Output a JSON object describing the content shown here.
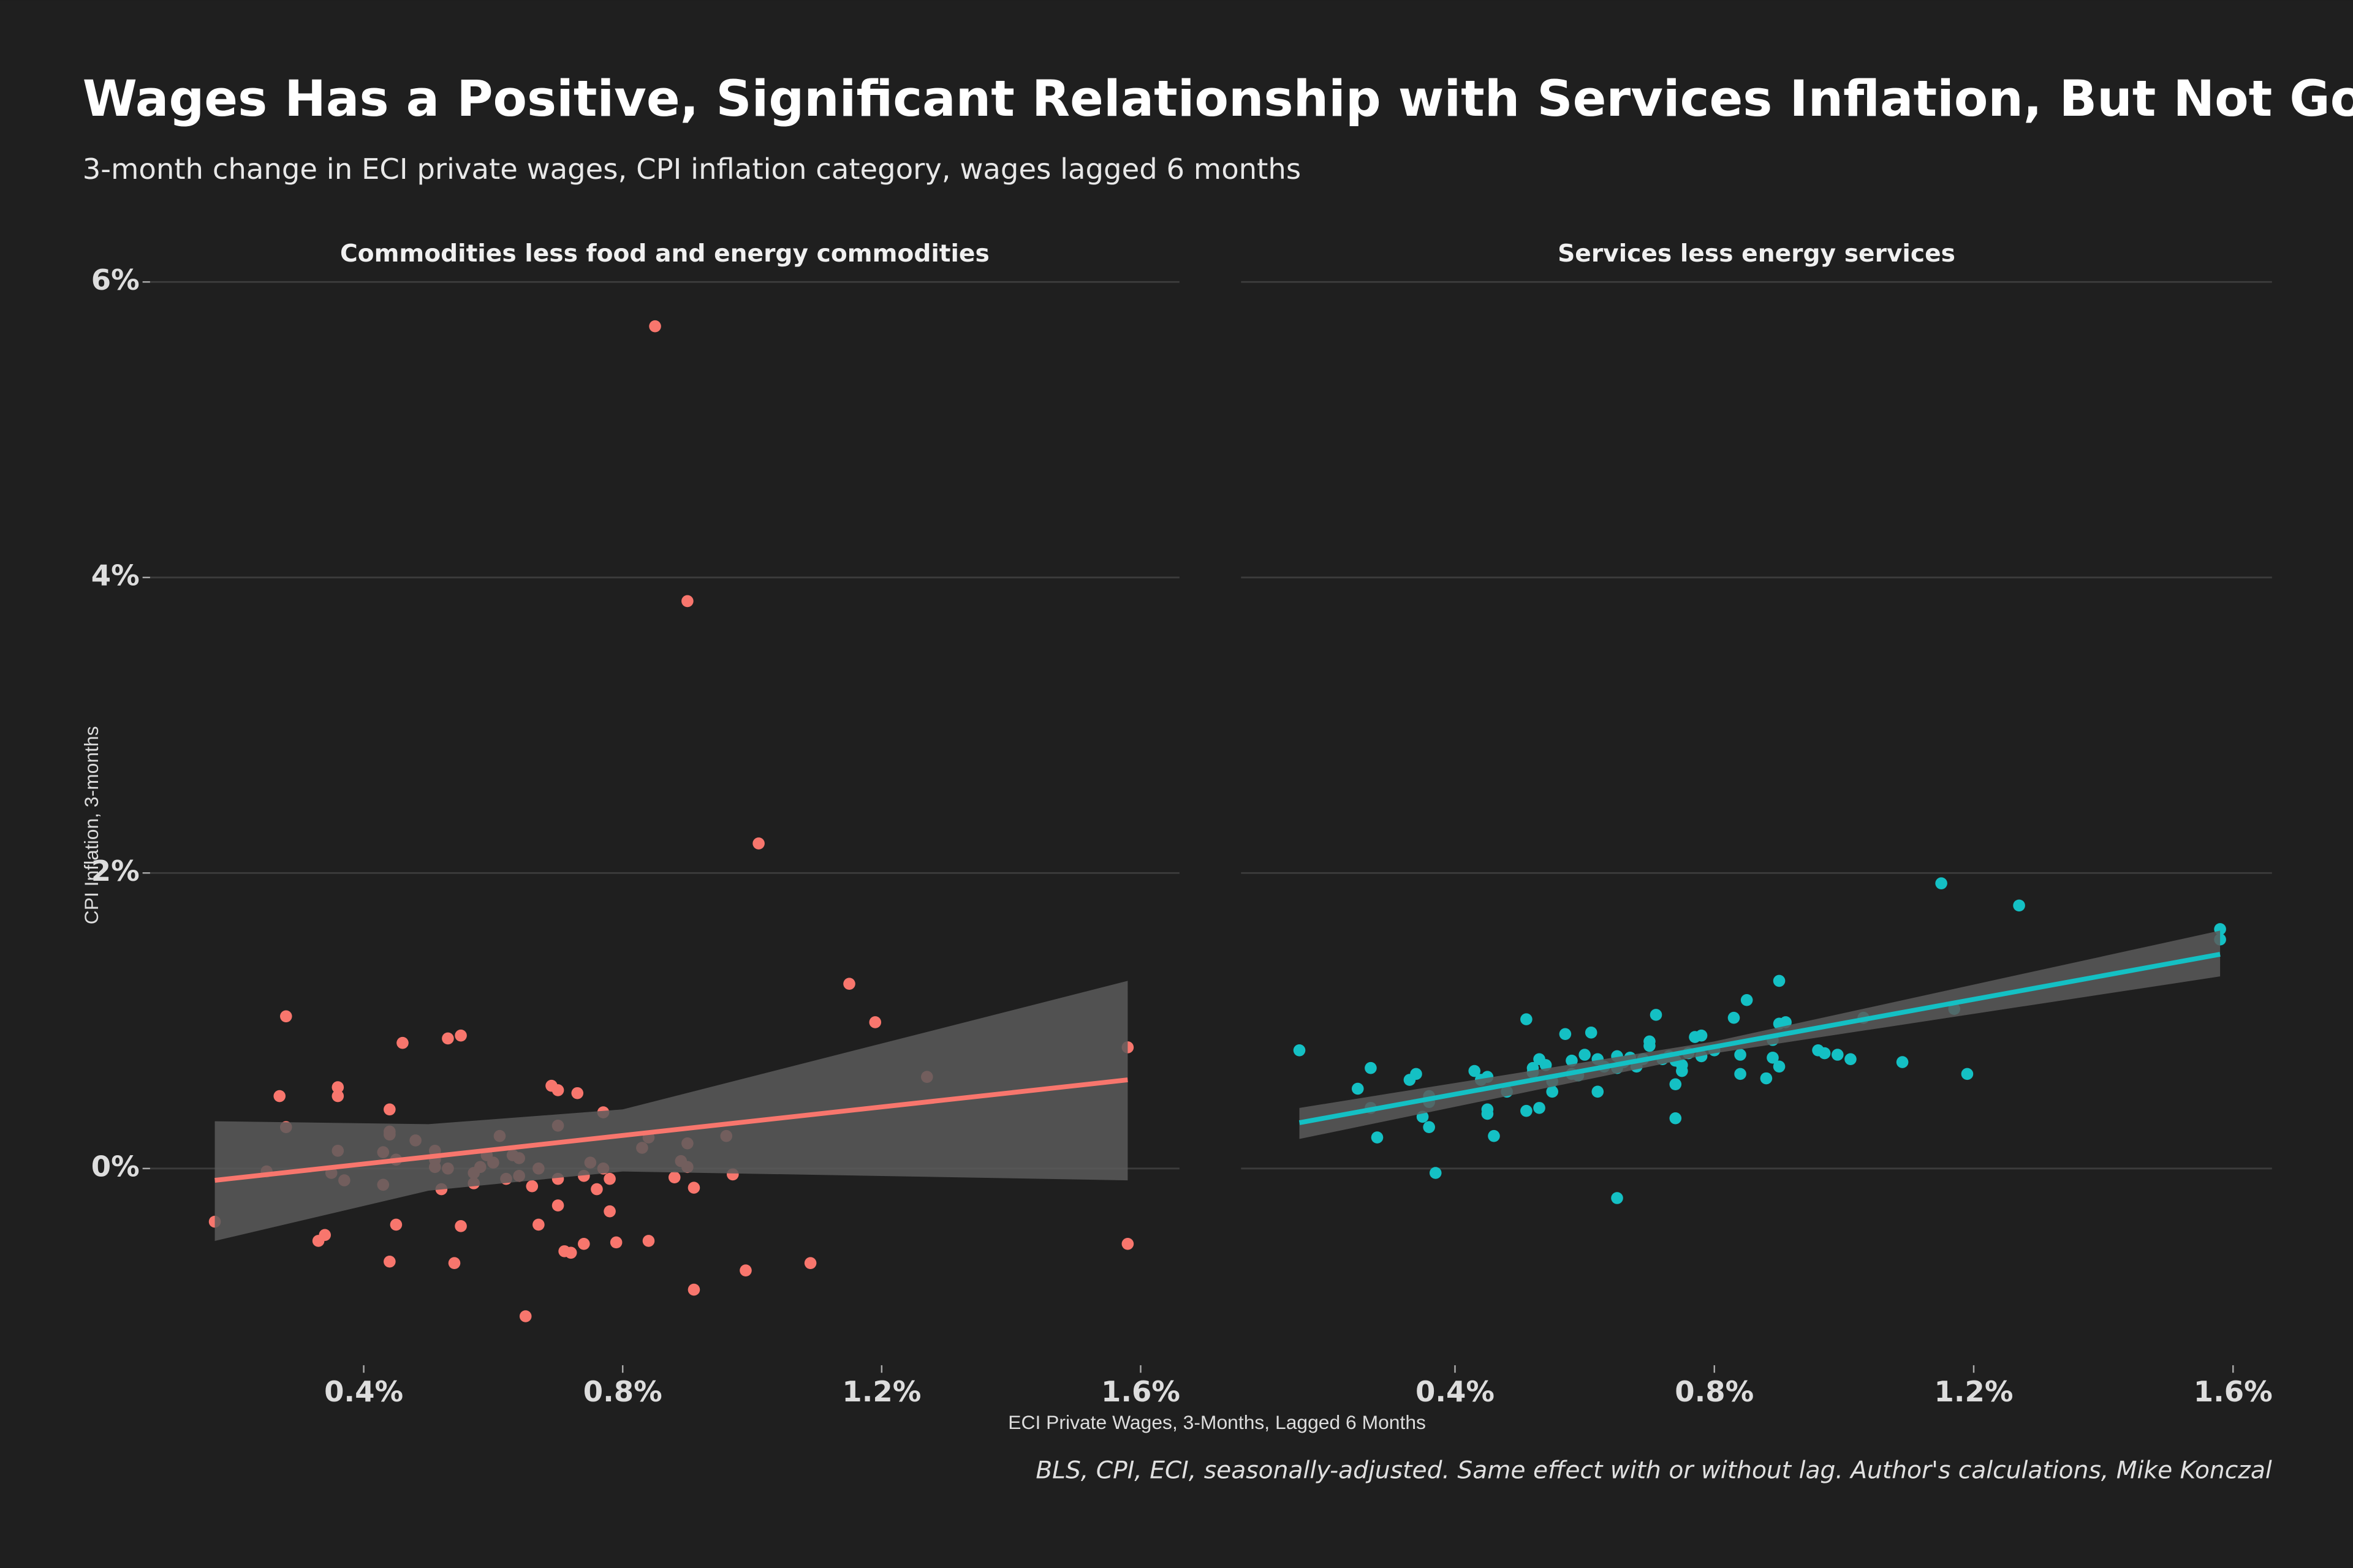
{
  "title": "Wages Has a Positive, Significant Relationship with Services Inflation, But Not Goods",
  "subtitle": "3-month change in ECI private wages, CPI inflation category, wages lagged 6 months",
  "x_label": "ECI Private Wages, 3-Months, Lagged 6 Months",
  "y_label": "CPI Inflation, 3-months",
  "source": "BLS, CPI, ECI, seasonally-adjusted. Same effect with or without lag. Author's calculations, Mike Konczal",
  "chart_data": [
    {
      "type": "scatter",
      "title": "Commodities less food and energy commodities",
      "color": "#f8766d",
      "x": [
        0.17,
        0.25,
        0.28,
        0.27,
        0.28,
        0.33,
        0.34,
        0.35,
        0.36,
        0.36,
        0.36,
        0.37,
        0.43,
        0.43,
        0.44,
        0.44,
        0.44,
        0.44,
        0.45,
        0.45,
        0.46,
        0.48,
        0.51,
        0.51,
        0.51,
        0.52,
        0.53,
        0.53,
        0.54,
        0.55,
        0.55,
        0.57,
        0.57,
        0.58,
        0.59,
        0.6,
        0.61,
        0.62,
        0.63,
        0.64,
        0.64,
        0.65,
        0.66,
        0.67,
        0.67,
        0.69,
        0.7,
        0.7,
        0.7,
        0.7,
        0.71,
        0.72,
        0.73,
        0.74,
        0.74,
        0.75,
        0.76,
        0.77,
        0.77,
        0.78,
        0.78,
        0.79,
        0.83,
        0.84,
        0.84,
        0.85,
        0.88,
        0.89,
        0.9,
        0.9,
        0.9,
        0.91,
        0.91,
        0.96,
        0.97,
        0.99,
        1.01,
        1.09,
        1.15,
        1.19,
        1.27,
        1.58,
        1.58
      ],
      "values": [
        -0.36,
        -0.02,
        1.03,
        0.49,
        0.28,
        -0.49,
        -0.45,
        -0.03,
        0.55,
        0.49,
        0.12,
        -0.08,
        -0.11,
        0.11,
        -0.63,
        0.23,
        0.4,
        0.25,
        0.06,
        -0.38,
        0.85,
        0.19,
        0.12,
        0.06,
        0.01,
        -0.14,
        0,
        0.88,
        -0.64,
        0.9,
        -0.39,
        -0.1,
        -0.03,
        0.01,
        0.09,
        0.04,
        0.22,
        -0.07,
        0.09,
        0.07,
        -0.05,
        -1.0,
        -0.12,
        0,
        -0.38,
        0.56,
        0.53,
        0.29,
        -0.07,
        -0.25,
        -0.56,
        -0.57,
        0.51,
        -0.05,
        -0.51,
        0.04,
        -0.14,
        0,
        0.38,
        -0.29,
        -0.07,
        -0.5,
        0.14,
        -0.49,
        0.21,
        5.7,
        -0.06,
        0.05,
        3.84,
        0.01,
        0.17,
        -0.82,
        -0.13,
        0.22,
        -0.04,
        -0.69,
        2.2,
        -0.64,
        1.25,
        0.99,
        0.62,
        0.82,
        -0.51
      ],
      "trend": {
        "color": "#f8766d",
        "x": [
          0.17,
          1.58
        ],
        "values": [
          -0.08,
          0.6
        ]
      },
      "band": {
        "color": "#5a5a5a",
        "x": [
          0.17,
          0.5,
          0.8,
          1.58
        ],
        "lower": [
          -0.49,
          -0.15,
          -0.02,
          -0.08
        ],
        "upper": [
          0.32,
          0.3,
          0.4,
          1.27
        ]
      },
      "xlim": [
        0.07,
        1.66
      ],
      "ylim": [
        -1.23,
        6.13
      ],
      "xticks": [
        {
          "value": 0.4,
          "label": "0.4%"
        },
        {
          "value": 0.8,
          "label": "0.8%"
        },
        {
          "value": 1.2,
          "label": "1.2%"
        },
        {
          "value": 1.6,
          "label": "1.6%"
        }
      ],
      "yticks": [
        {
          "value": 0,
          "label": "0%"
        },
        {
          "value": 2,
          "label": "2%"
        },
        {
          "value": 4,
          "label": "4%"
        },
        {
          "value": 6,
          "label": "6%"
        }
      ],
      "grid": true
    },
    {
      "type": "scatter",
      "title": "Services less energy services",
      "color": "#14c0c4",
      "x": [
        0.16,
        0.25,
        0.27,
        0.27,
        0.28,
        0.33,
        0.34,
        0.35,
        0.36,
        0.36,
        0.36,
        0.37,
        0.43,
        0.44,
        0.45,
        0.45,
        0.45,
        0.46,
        0.48,
        0.51,
        0.51,
        0.52,
        0.52,
        0.53,
        0.53,
        0.54,
        0.55,
        0.55,
        0.57,
        0.58,
        0.58,
        0.59,
        0.6,
        0.61,
        0.62,
        0.62,
        0.63,
        0.65,
        0.65,
        0.65,
        0.66,
        0.67,
        0.68,
        0.69,
        0.7,
        0.7,
        0.71,
        0.72,
        0.73,
        0.74,
        0.74,
        0.74,
        0.75,
        0.75,
        0.76,
        0.77,
        0.78,
        0.78,
        0.8,
        0.83,
        0.84,
        0.84,
        0.85,
        0.88,
        0.89,
        0.89,
        0.9,
        0.9,
        0.9,
        0.91,
        0.96,
        0.97,
        0.99,
        1.01,
        1.03,
        1.09,
        1.15,
        1.17,
        1.19,
        1.27,
        1.58,
        1.58
      ],
      "values": [
        0.8,
        0.54,
        0.68,
        0.41,
        0.21,
        0.6,
        0.64,
        0.35,
        0.49,
        0.45,
        0.28,
        -0.03,
        0.66,
        0.6,
        0.62,
        0.4,
        0.37,
        0.22,
        0.52,
        1.01,
        0.39,
        0.68,
        0.65,
        0.74,
        0.41,
        0.7,
        0.59,
        0.52,
        0.91,
        0.64,
        0.73,
        0.63,
        0.77,
        0.92,
        0.52,
        0.74,
        0.69,
        0.68,
        -0.2,
        0.76,
        0.72,
        0.75,
        0.69,
        0.74,
        0.83,
        0.86,
        1.04,
        0.74,
        0.76,
        0.57,
        0.73,
        0.34,
        0.66,
        0.7,
        0.78,
        0.89,
        0.9,
        0.76,
        0.8,
        1.02,
        0.64,
        0.77,
        1.14,
        0.61,
        0.87,
        0.75,
        1.27,
        0.69,
        0.98,
        0.99,
        0.8,
        0.78,
        0.77,
        0.74,
        1.02,
        0.72,
        1.93,
        1.08,
        0.64,
        1.78,
        1.55,
        1.62
      ],
      "trend": {
        "color": "#14c0c4",
        "x": [
          0.16,
          1.58
        ],
        "values": [
          0.31,
          1.45
        ]
      },
      "band": {
        "color": "#5a5a5a",
        "x": [
          0.16,
          0.8,
          1.58
        ],
        "lower": [
          0.2,
          0.78,
          1.3
        ],
        "upper": [
          0.41,
          0.86,
          1.61
        ]
      },
      "xlim": [
        0.07,
        1.66
      ],
      "ylim": [
        -1.23,
        6.13
      ],
      "xticks": [
        {
          "value": 0.4,
          "label": "0.4%"
        },
        {
          "value": 0.8,
          "label": "0.8%"
        },
        {
          "value": 1.2,
          "label": "1.2%"
        },
        {
          "value": 1.6,
          "label": "1.6%"
        }
      ],
      "yticks": [
        0,
        2,
        4,
        6
      ],
      "grid": true
    }
  ]
}
